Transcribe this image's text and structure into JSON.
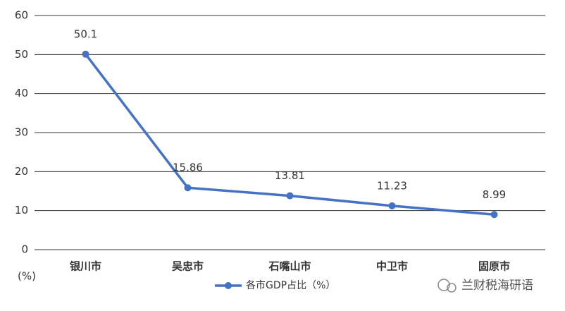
{
  "chart_data": {
    "type": "line",
    "categories": [
      "银川市",
      "吴忠市",
      "石嘴山市",
      "中卫市",
      "固原市"
    ],
    "series": [
      {
        "name": "各市GDP占比（%）",
        "color": "#4472c4",
        "values": [
          50.1,
          15.86,
          13.81,
          11.23,
          8.99
        ]
      }
    ],
    "ylim": [
      0,
      60
    ],
    "yticks": [
      0,
      10,
      20,
      30,
      40,
      50,
      60
    ],
    "grid": true,
    "y_label": "(%)",
    "legend": "bottom",
    "watermark": "兰财税海研语"
  }
}
